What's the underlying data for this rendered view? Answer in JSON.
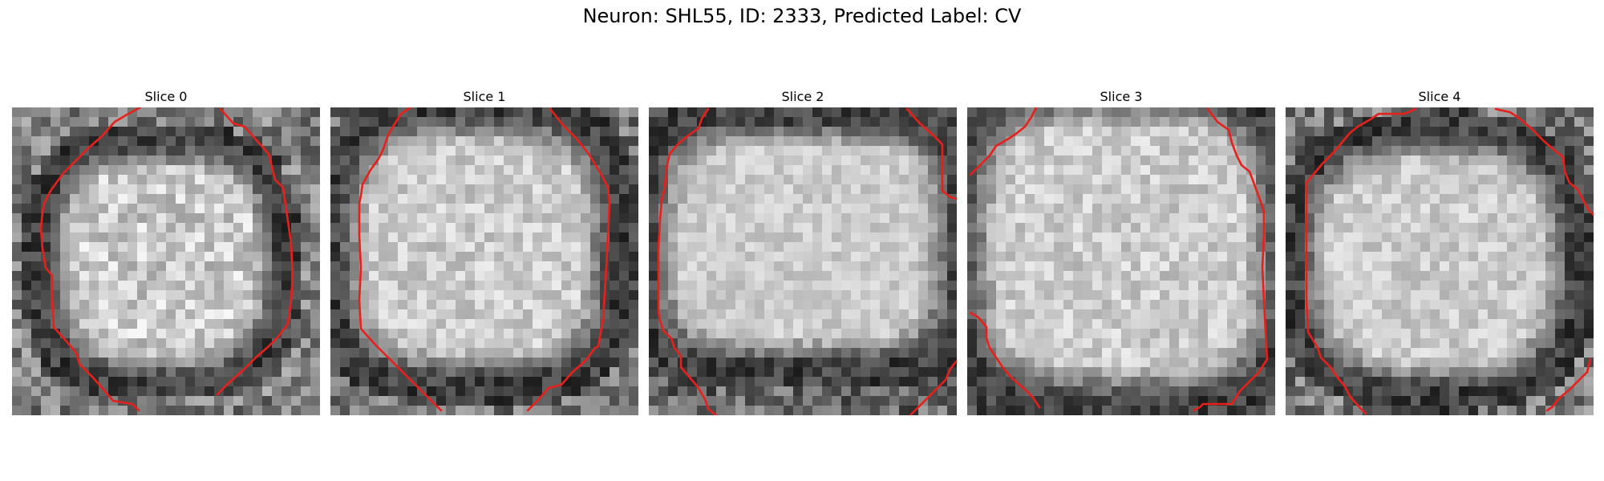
{
  "figure": {
    "title": "Neuron: SHL55, ID: 2333, Predicted Label: CV"
  },
  "panels": [
    {
      "title": "Slice 0"
    },
    {
      "title": "Slice 1"
    },
    {
      "title": "Slice 2"
    },
    {
      "title": "Slice 3"
    },
    {
      "title": "Slice 4"
    }
  ],
  "colors": {
    "contour": "#e8201c",
    "background": "#ffffff"
  }
}
